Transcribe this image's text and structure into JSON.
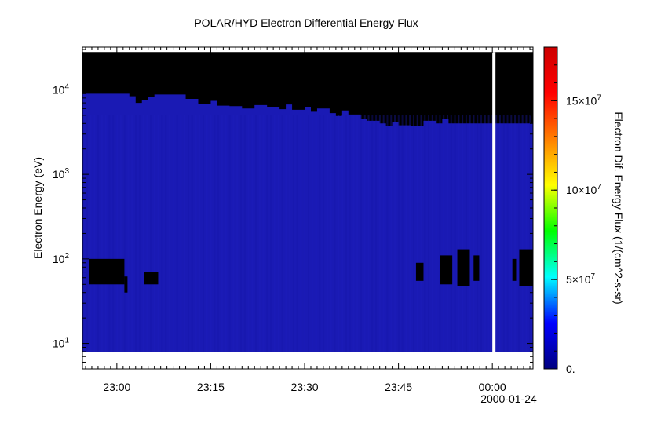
{
  "chart_data": {
    "type": "heatmap",
    "title": "POLAR/HYD  Electron Differential Energy Flux",
    "ylabel": "Electron Energy (eV)",
    "colorbar_label": "Electron Dif. Energy Flux (1/(cm^2-s-sr)",
    "x_ticks": [
      "23:00",
      "23:15",
      "23:30",
      "23:45",
      "00:00"
    ],
    "x_tick_minutes": [
      30,
      45,
      60,
      75,
      90
    ],
    "x_range_minutes": [
      24.5,
      96.5
    ],
    "date_label": "2000-01-24",
    "y_scale": "log",
    "y_range": [
      5,
      32000
    ],
    "y_ticks": [
      {
        "base": "10",
        "exp": "1",
        "value": 10
      },
      {
        "base": "10",
        "exp": "2",
        "value": 100
      },
      {
        "base": "10",
        "exp": "3",
        "value": 1000
      },
      {
        "base": "10",
        "exp": "4",
        "value": 10000
      }
    ],
    "data_energy_range": [
      8,
      28000
    ],
    "colorbar_range": [
      0,
      180000000
    ],
    "colorbar_ticks": [
      {
        "label": "0.",
        "base": "",
        "exp": "",
        "value": 0
      },
      {
        "label": "5×10",
        "base": "5×10",
        "exp": "7",
        "value": 50000000
      },
      {
        "label": "10×10",
        "base": "10×10",
        "exp": "7",
        "value": 100000000
      },
      {
        "label": "15×10",
        "base": "15×10",
        "exp": "7",
        "value": 150000000
      }
    ],
    "colormap": [
      "#00007f",
      "#0000ff",
      "#00ffff",
      "#00ff00",
      "#ffff00",
      "#ff7f00",
      "#ff0000",
      "#cc0000"
    ],
    "background_flux_color": "#1a1ab4",
    "fill_color": "#000000",
    "data_gap_minutes": [
      90,
      90.5
    ],
    "upper_cutoff_eV": [
      [
        24.5,
        9000
      ],
      [
        31.0,
        9000
      ],
      [
        32.0,
        8400
      ],
      [
        33.0,
        7000
      ],
      [
        34.0,
        7600
      ],
      [
        35.0,
        8200
      ],
      [
        36.0,
        8800
      ],
      [
        41.0,
        7800
      ],
      [
        43.0,
        6800
      ],
      [
        45.0,
        7400
      ],
      [
        46.0,
        6500
      ],
      [
        48.0,
        6400
      ],
      [
        50.0,
        6000
      ],
      [
        52.0,
        6600
      ],
      [
        54.0,
        6300
      ],
      [
        56.0,
        5900
      ],
      [
        57.0,
        6700
      ],
      [
        58.0,
        5800
      ],
      [
        60.0,
        6300
      ],
      [
        61.0,
        5500
      ],
      [
        62.0,
        6000
      ],
      [
        64.0,
        5300
      ],
      [
        65.0,
        4900
      ],
      [
        66.0,
        5700
      ],
      [
        67.0,
        5100
      ],
      [
        69.0,
        4500
      ],
      [
        70.0,
        4300
      ],
      [
        72.0,
        4000
      ],
      [
        73.0,
        3700
      ],
      [
        74.0,
        4200
      ],
      [
        75.0,
        3800
      ],
      [
        77.0,
        3700
      ],
      [
        79.0,
        4300
      ],
      [
        81.0,
        4000
      ],
      [
        82.0,
        4500
      ],
      [
        83.0,
        4000
      ],
      [
        96.5,
        4000
      ]
    ],
    "fill_blocks": [
      {
        "t0": 25.6,
        "t1": 31.2,
        "e_low": 50,
        "e_high": 100
      },
      {
        "t0": 31.2,
        "t1": 31.7,
        "e_low": 40,
        "e_high": 62
      },
      {
        "t0": 34.3,
        "t1": 36.6,
        "e_low": 50,
        "e_high": 70
      },
      {
        "t0": 77.8,
        "t1": 79.0,
        "e_low": 55,
        "e_high": 90
      },
      {
        "t0": 81.6,
        "t1": 83.6,
        "e_low": 50,
        "e_high": 110
      },
      {
        "t0": 84.4,
        "t1": 86.4,
        "e_low": 48,
        "e_high": 130
      },
      {
        "t0": 87.0,
        "t1": 87.9,
        "e_low": 55,
        "e_high": 110
      },
      {
        "t0": 93.2,
        "t1": 93.8,
        "e_low": 55,
        "e_high": 100
      },
      {
        "t0": 94.3,
        "t1": 96.5,
        "e_low": 48,
        "e_high": 130
      }
    ]
  }
}
